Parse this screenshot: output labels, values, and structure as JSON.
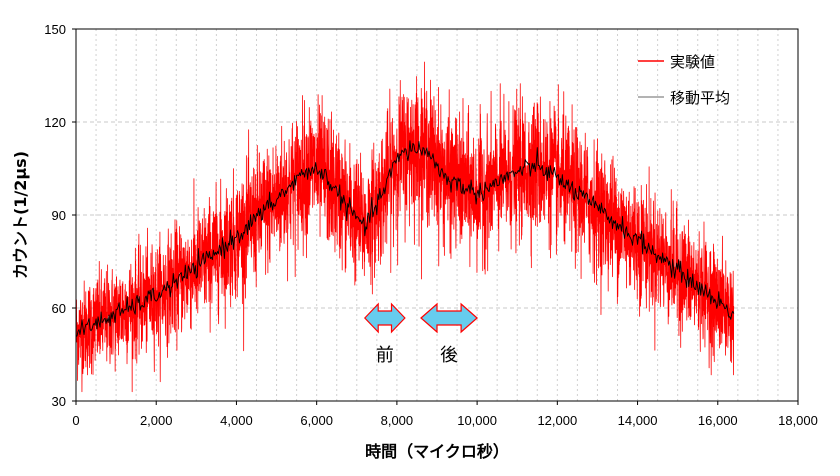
{
  "chart_data": {
    "type": "line",
    "title": "",
    "xlabel": "時間（マイクロ秒）",
    "ylabel": "カウント(1/2μs)",
    "xlim": [
      0,
      18000
    ],
    "ylim": [
      30,
      150
    ],
    "x_ticks": [
      0,
      2000,
      4000,
      6000,
      8000,
      10000,
      12000,
      14000,
      16000,
      18000
    ],
    "x_tick_labels": [
      "0",
      "2,000",
      "4,000",
      "6,000",
      "8,000",
      "10,000",
      "12,000",
      "14,000",
      "16,000",
      "18,000"
    ],
    "y_ticks": [
      30,
      60,
      90,
      120,
      150
    ],
    "y_tick_labels": [
      "30",
      "60",
      "90",
      "120",
      "150"
    ],
    "grid": true,
    "legend_position": "top-right",
    "series": [
      {
        "name": "実験値",
        "color": "#ff0000",
        "x": [
          0,
          1000,
          2000,
          3000,
          4000,
          5000,
          5800,
          6200,
          6800,
          7200,
          7600,
          8000,
          8400,
          8800,
          9200,
          10000,
          11000,
          11500,
          12000,
          13000,
          14000,
          15000,
          16000,
          16400
        ],
        "values": [
          52,
          58,
          64,
          73,
          83,
          95,
          105,
          103,
          92,
          86,
          96,
          108,
          112,
          110,
          102,
          97,
          104,
          106,
          102,
          92,
          82,
          72,
          62,
          58
        ]
      },
      {
        "name": "移動平均",
        "color": "#000000",
        "x": [
          0,
          1000,
          2000,
          3000,
          4000,
          5000,
          5800,
          6200,
          6800,
          7200,
          7600,
          8000,
          8400,
          8800,
          9200,
          10000,
          11000,
          11500,
          12000,
          13000,
          14000,
          15000,
          16000,
          16400
        ],
        "values": [
          52,
          58,
          64,
          73,
          83,
          95,
          105,
          103,
          92,
          86,
          96,
          108,
          112,
          110,
          102,
          97,
          104,
          106,
          102,
          92,
          82,
          72,
          62,
          58
        ]
      }
    ],
    "annotations": [
      {
        "text": "前",
        "x_range": [
          7200,
          8200
        ]
      },
      {
        "text": "後",
        "x_range": [
          8600,
          10000
        ]
      }
    ],
    "annotation_arrow_color": "#66ccee"
  }
}
